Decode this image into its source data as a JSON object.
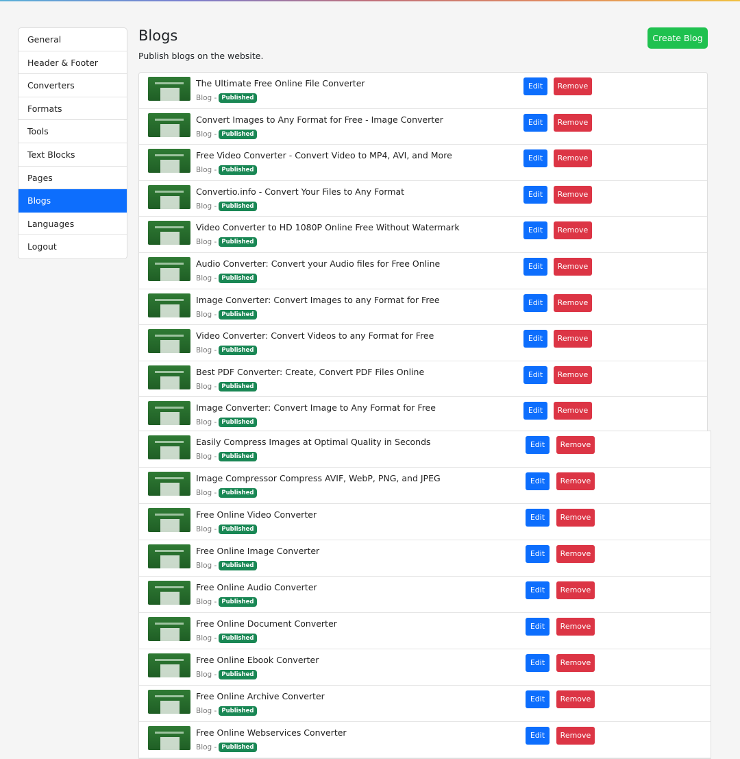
{
  "sidebar": {
    "items": [
      "General",
      "Header & Footer",
      "Converters",
      "Formats",
      "Tools",
      "Text Blocks",
      "Pages",
      "Blogs",
      "Languages",
      "Logout"
    ],
    "active": "Blogs"
  },
  "header": {
    "title": "Blogs",
    "subtitle": "Publish blogs on the website.",
    "create_label": "Create Blog"
  },
  "labels": {
    "category": "Blog -",
    "status": "Published",
    "edit": "Edit",
    "remove": "Remove"
  },
  "colors": {
    "primary": "#0d6efd",
    "danger": "#dc3545",
    "success": "#1fc14f",
    "badge": "#198754"
  },
  "blogs_top": [
    "The Ultimate Free Online File Converter",
    "Convert Images to Any Format for Free - Image Converter",
    "Free Video Converter - Convert Video to MP4, AVI, and More",
    "Convertio.info - Convert Your Files to Any Format",
    "Video Converter to HD 1080P Online Free Without Watermark",
    "Audio Converter: Convert your Audio files for Free Online",
    "Image Converter: Convert Images to any Format for Free",
    "Video Converter: Convert Videos to any Format for Free",
    "Best PDF Converter: Create, Convert PDF Files Online",
    "Image Converter: Convert Image to Any Format for Free"
  ],
  "blogs_bottom": [
    "Easily Compress Images at Optimal Quality in Seconds",
    "Image Compressor Compress AVIF, WebP, PNG, and JPEG",
    "Free Online Video Converter",
    "Free Online Image Converter",
    "Free Online Audio Converter",
    "Free Online Document Converter",
    "Free Online Ebook Converter",
    "Free Online Archive Converter",
    "Free Online Webservices Converter"
  ]
}
